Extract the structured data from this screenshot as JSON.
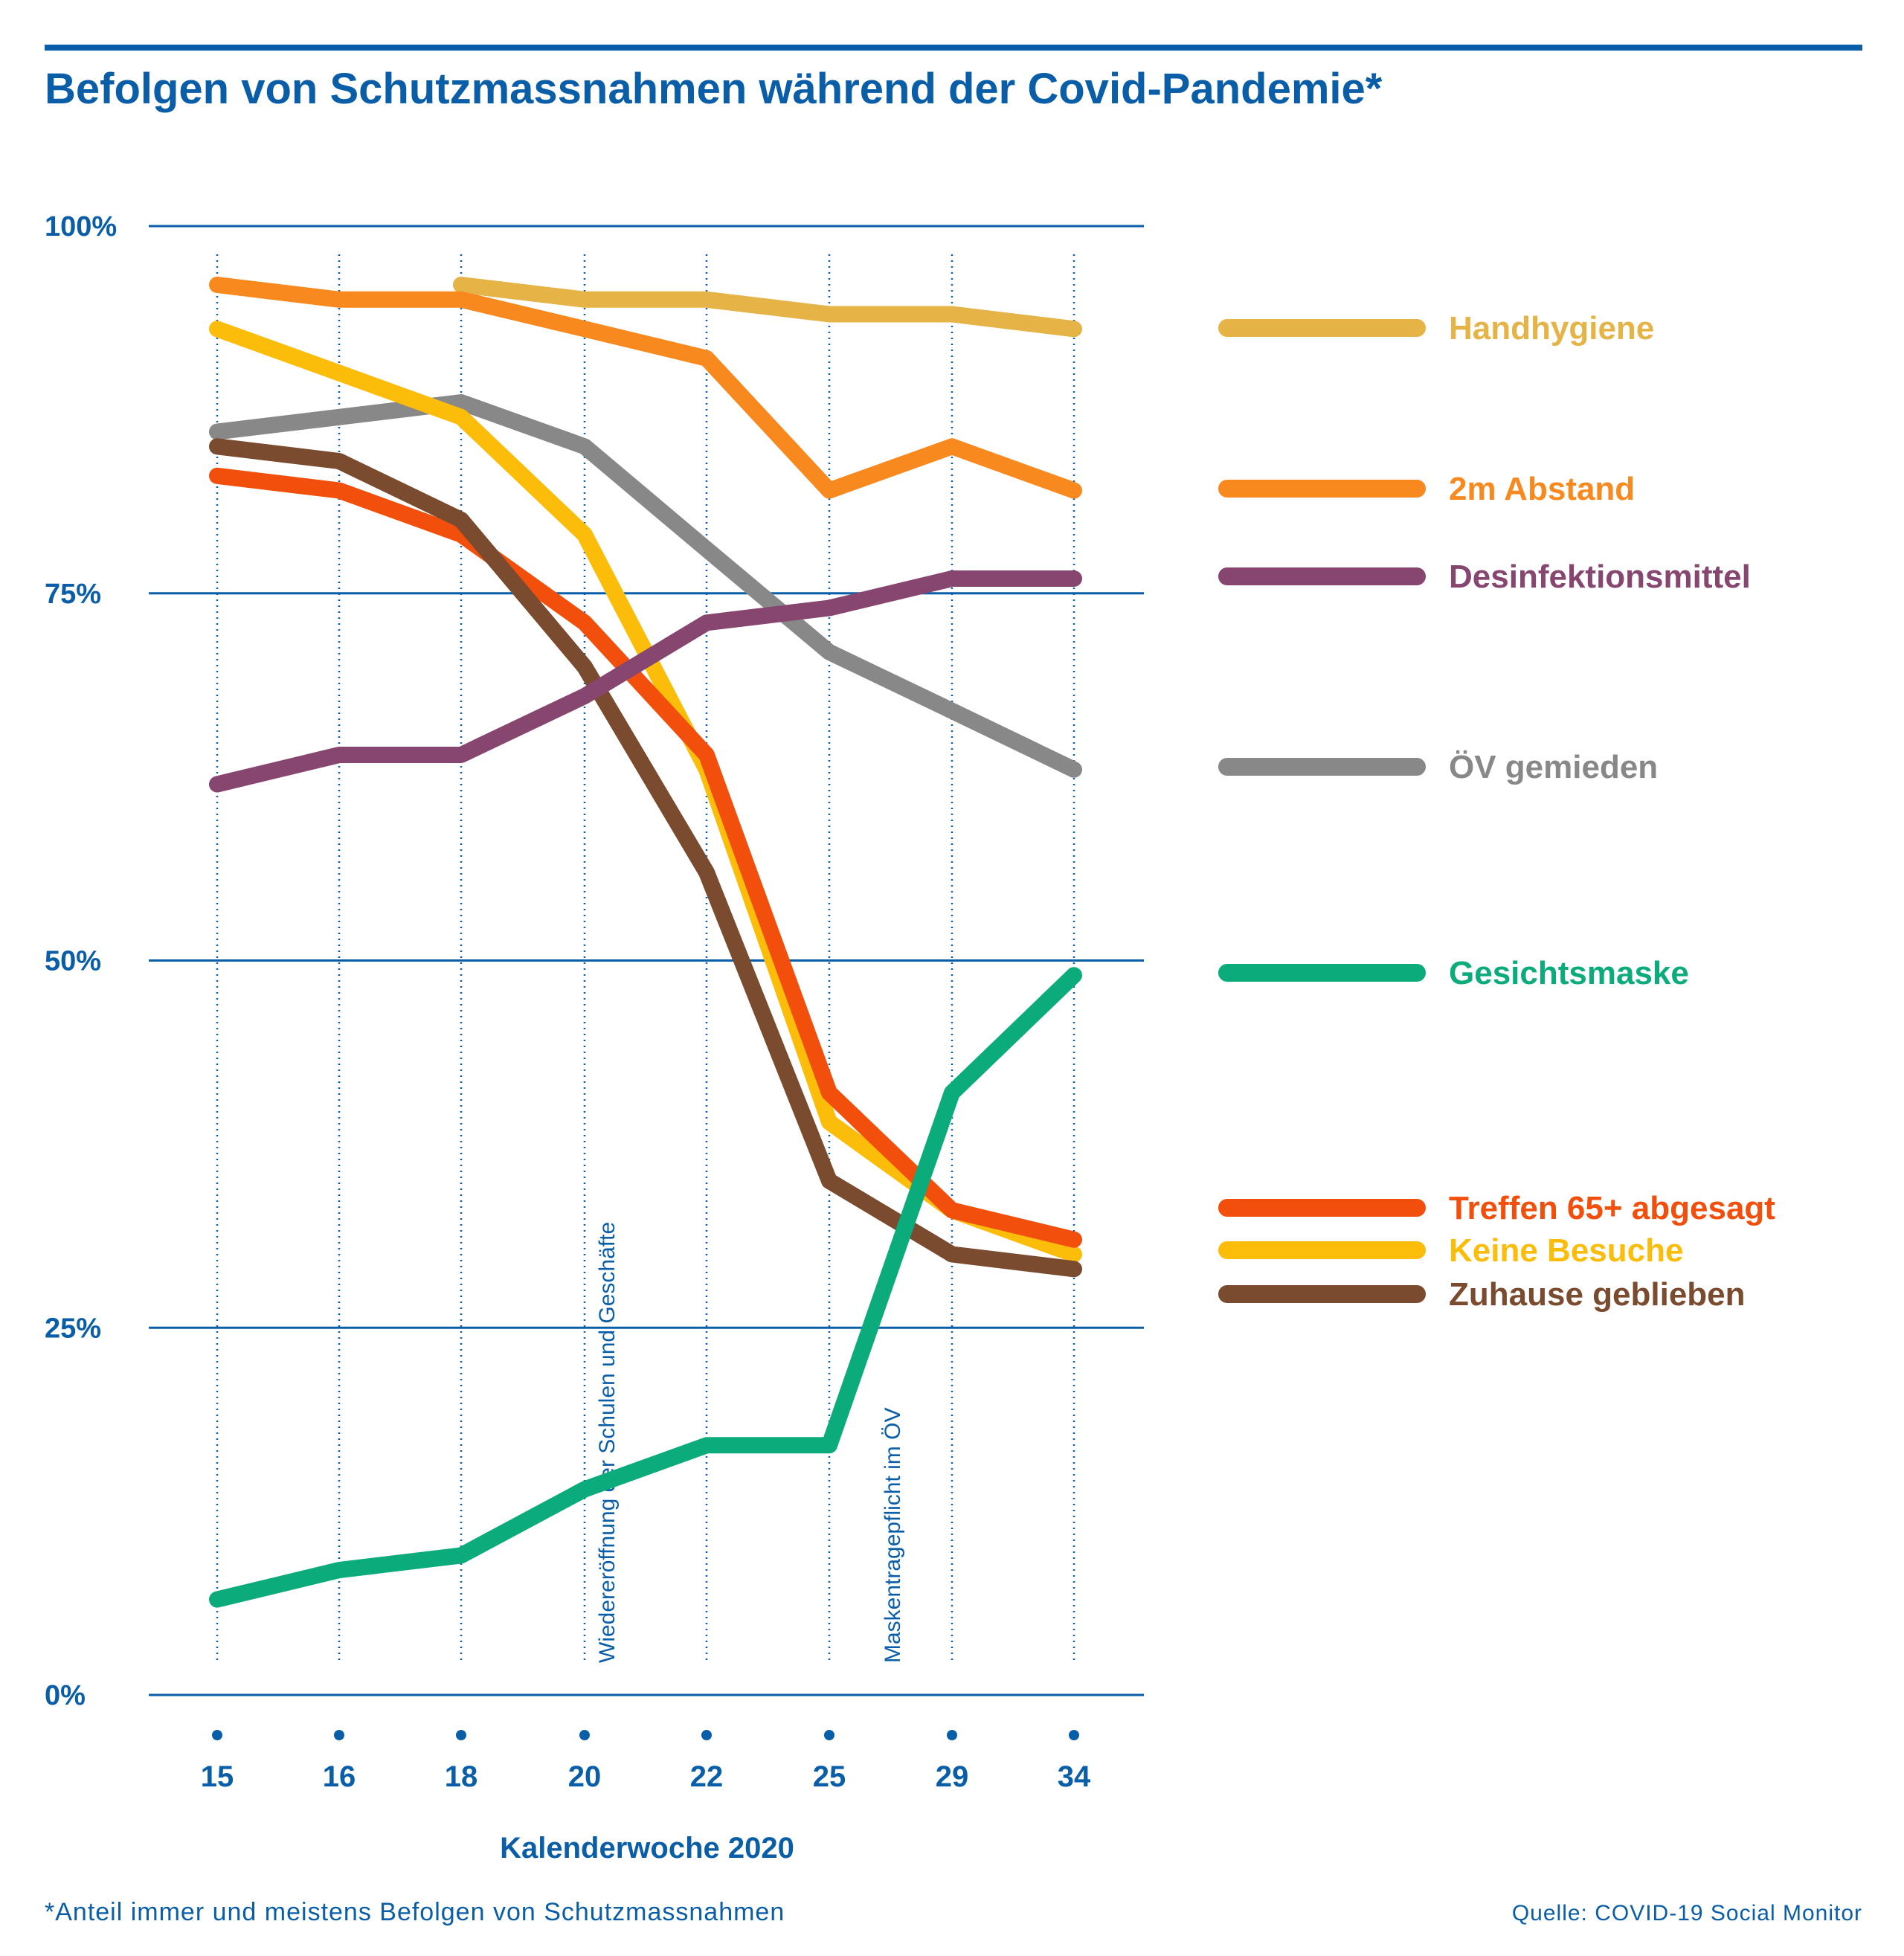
{
  "title": "Befolgen von Schutzmassnahmen während der Covid-Pandemie*",
  "footnote": "*Anteil immer und meistens Befolgen von Schutzmassnahmen",
  "source": "Quelle: COVID-19 Social Monitor",
  "colors": {
    "accent": "#0a5ea8"
  },
  "chart_data": {
    "type": "line",
    "xlabel": "Kalenderwoche 2020",
    "ylabel": "",
    "x": [
      "15",
      "16",
      "18",
      "20",
      "22",
      "25",
      "29",
      "34"
    ],
    "ylim": [
      0,
      100
    ],
    "yticks": [
      {
        "value": 0,
        "label": "0%"
      },
      {
        "value": 25,
        "label": "25%"
      },
      {
        "value": 50,
        "label": "50%"
      },
      {
        "value": 75,
        "label": "75%"
      },
      {
        "value": 100,
        "label": "100%"
      }
    ],
    "grid": "horizontal solid, vertical dotted",
    "legend_position": "right",
    "annotations": [
      {
        "x_after": "20",
        "text": "Wiedereröffnung der Schulen und Geschäfte"
      },
      {
        "x_after": "25",
        "text": "Maskentragepflicht im ÖV"
      }
    ],
    "series": [
      {
        "name": "Handhygiene",
        "color": "#e6b347",
        "values": [
          null,
          null,
          96,
          95,
          95,
          94,
          94,
          93
        ]
      },
      {
        "name": "2m Abstand",
        "color": "#f7891f",
        "values": [
          96,
          95,
          95,
          93,
          91,
          82,
          85,
          82
        ]
      },
      {
        "name": "Desinfektionsmittel",
        "color": "#86466f",
        "values": [
          62,
          64,
          64,
          68,
          73,
          74,
          76,
          76
        ]
      },
      {
        "name": "ÖV gemieden",
        "color": "#888888",
        "values": [
          86,
          87,
          88,
          85,
          78,
          71,
          67,
          63
        ]
      },
      {
        "name": "Gesichtsmaske",
        "color": "#0bab7c",
        "values": [
          6.5,
          8.5,
          9.5,
          14,
          17,
          17,
          41,
          49
        ]
      },
      {
        "name": "Treffen 65+ abgesagt",
        "color": "#f24f0c",
        "values": [
          83,
          82,
          79,
          73,
          64,
          41,
          33,
          31
        ]
      },
      {
        "name": "Keine Besuche",
        "color": "#fbbd0a",
        "values": [
          93,
          90,
          87,
          79,
          63,
          39,
          33,
          30
        ]
      },
      {
        "name": "Zuhause geblieben",
        "color": "#7a4b2e",
        "values": [
          85,
          84,
          80,
          70,
          56,
          35,
          30,
          29
        ]
      }
    ]
  }
}
